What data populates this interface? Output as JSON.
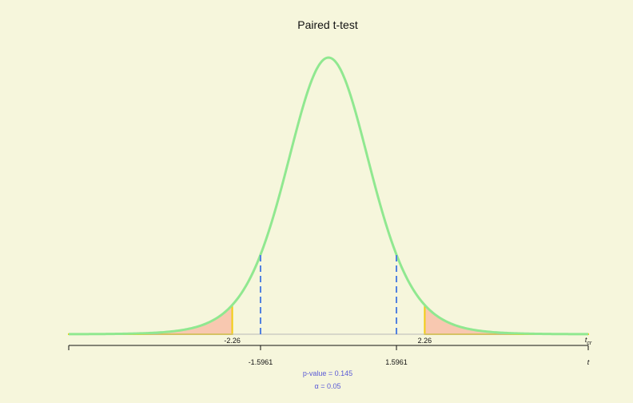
{
  "chart_data": {
    "type": "line",
    "title": "Paired t-test",
    "distribution": "Student t",
    "degrees_of_freedom": 9,
    "x_range": [
      -6.1,
      6.1
    ],
    "t_observed": [
      -1.5961,
      1.5961
    ],
    "t_critical": [
      -2.26,
      2.26
    ],
    "critical_labels": [
      "-2.26",
      "2.26"
    ],
    "observed_labels": [
      "-1.5961",
      "1.5961"
    ],
    "xlabel": "t",
    "tcr_label": "t_cr",
    "p_value_text": "p-value = 0.145",
    "alpha_text": "α = 0.05",
    "grid": false,
    "colors": {
      "curve": "#90e890",
      "tails_fill": "#f8c8b0",
      "tails_stroke": "#f2cc12",
      "observed_line": "#4f7fe0",
      "baseline": "#b8b8b8",
      "axis": "#111111",
      "annotation": "#5a5ad6"
    }
  }
}
